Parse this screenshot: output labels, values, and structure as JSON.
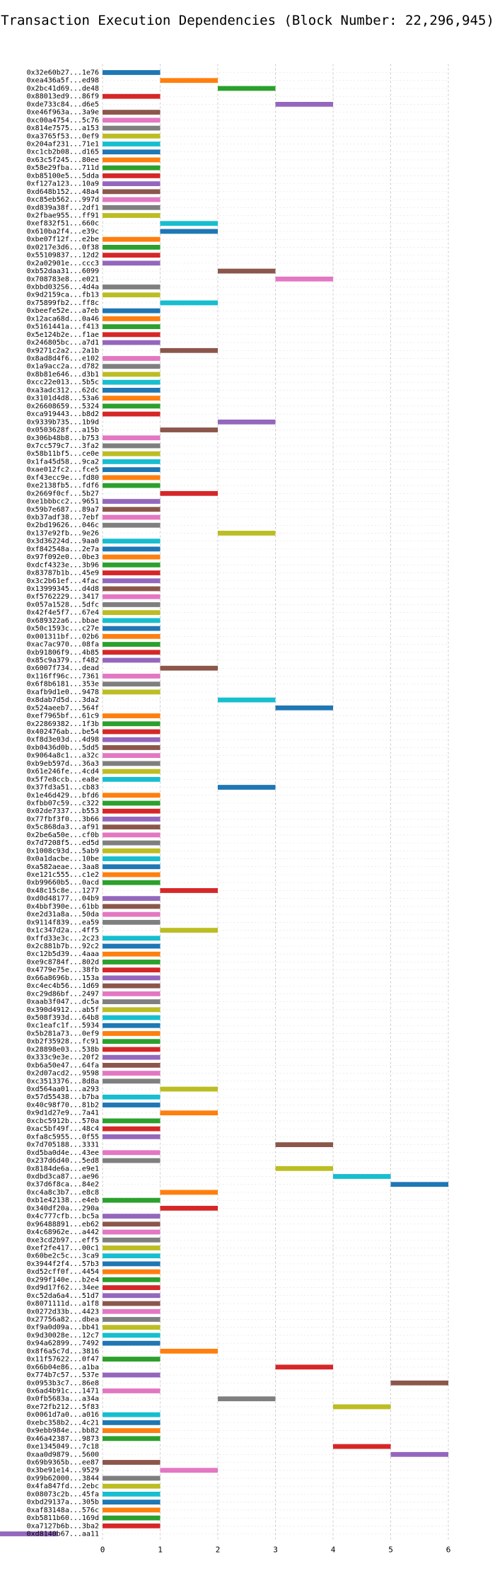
{
  "chart_data": {
    "type": "bar",
    "title": "Transaction Execution Dependencies (Block Number: 22,296,945)",
    "xlabel": "",
    "ylabel": "",
    "xlim": [
      0,
      6
    ],
    "xticks": [
      "0",
      "1",
      "2",
      "3",
      "4",
      "5",
      "6"
    ],
    "grid": true,
    "colors": [
      "#1f77b4",
      "#ff7f0e",
      "#2ca02c",
      "#d62728",
      "#9467bd",
      "#8c564b",
      "#e377c2",
      "#7f7f7f",
      "#bcbd22",
      "#17becf"
    ],
    "transactions": [
      "0x32e60b27...1e76",
      "0xea436a5f...ed98",
      "0x2bc41d69...de48",
      "0x88013ed9...86f9",
      "0xde733c84...d6e5",
      "0xe46f963a...3a9e",
      "0xc00a4754...5c76",
      "0x814e7575...a153",
      "0xa3765f53...0ef9",
      "0x204af231...71e1",
      "0xc1cb2b08...d165",
      "0x63c5f245...80ee",
      "0x58e29fba...711d",
      "0xb85100e5...5dda",
      "0xf127a123...10a9",
      "0xd648b152...48a4",
      "0xc85eb562...997d",
      "0xd839a38f...2df1",
      "0x2fbae955...ff91",
      "0xef832f51...660c",
      "0x610ba2f4...e39c",
      "0xbe07f12f...e2be",
      "0x0217e3d6...0f38",
      "0x55109837...12d2",
      "0x2a02901e...ccc3",
      "0xb52daa31...6099",
      "0x708783e8...e021",
      "0xbbd032S6...4d4a",
      "0x9d2159ca...fb13",
      "0x75899fb2...ff8c",
      "0xbeefe52e...a7eb",
      "0x12aca68d...0a46",
      "0x5161441a...f413",
      "0x5e124b2e...f1ae",
      "0x246805bc...a7d1",
      "0x9271c2a2...2a1b",
      "0x8ad8d4f6...e102",
      "0x1a9acc2a...d782",
      "0x8b81e646...d3b1",
      "0xcc22e013...5b5c",
      "0xa3adc312...62dc",
      "0x3101d4d8...53a6",
      "0x26608659...5324",
      "0xca919443...b8d2",
      "0x9339b735...1b9d",
      "0x0503628f...a15b",
      "0x306b48b8...b753",
      "0x7cc579c7...3fa2",
      "0x58b11bf5...ce0e",
      "0x1fa45d58...9ca2",
      "0xae012fc2...fce5",
      "0xf43ecc9e...fd80",
      "0xe2138fb5...fdf6",
      "0x2669f0cf...5b27",
      "0xe1bbbcc2...9651",
      "0x59b7e687...89a7",
      "0xb37adf38...7ebf",
      "0x2bd19626...046c",
      "0x137e92fb...9e26",
      "0x3d36224d...9aa0",
      "0xf842548a...2e7a",
      "0x97f092e0...0be3",
      "0xdcf4323e...3b96",
      "0x83787b1b...45e9",
      "0x3c2b61ef...4fac",
      "0x13999345...d4d8",
      "0xf5762229...3417",
      "0x057a1528...5dfc",
      "0x42f4e5f7...67e4",
      "0x689322a6...bbae",
      "0x50c1593c...c27e",
      "0x001311bf...02b6",
      "0xac7ac970...08fa",
      "0xb91806f9...4b85",
      "0x85c9a379...f482",
      "0x6007f734...dead",
      "0x116ff96c...7361",
      "0x6f8b6181...353e",
      "0xafb9d1e0...9478",
      "0x8dab7d5d...3da2",
      "0x524aeeb7...564f",
      "0xef7965bf...61c9",
      "0x22869382...1f3b",
      "0x402476ab...be54",
      "0xf8d3e03d...4d98",
      "0xb0436d0b...5dd5",
      "0x9064a8c1...a32c",
      "0xb9eb597d...36a3",
      "0x61e246fe...4cd4",
      "0x5f7e8ccb...ea8e",
      "0x37fd3a51...cb83",
      "0x1e46d429...bfd6",
      "0xfbb07c59...c322",
      "0x02de7337...b553",
      "0x77fbf3f0...3b66",
      "0x5c868da3...af91",
      "0x2be6a50e...cf0b",
      "0x7d7208f5...ed5d",
      "0x1008c93d...5ab9",
      "0x0a1dacbe...10be",
      "0xa582aeae...3aa8",
      "0xe121c555...c1e2",
      "0xb99660b5...0acd",
      "0x48c15c8e...1277",
      "0xd0d48177...04b9",
      "0x4bbf390e...61bb",
      "0xe2d31a8a...50da",
      "0x9114f839...ea59",
      "0x1c347d2a...4ff5",
      "0xffd33e3c...2c23",
      "0x2c881b7b...92c2",
      "0xc12b5d39...4aaa",
      "0xe9c8784f...802d",
      "0x4779e75e...38fb",
      "0x66a8696b...153a",
      "0xc4ec4b56...1d69",
      "0xc29d86bf...2497",
      "0xaab3f047...dc5a",
      "0x390d4912...ab5f",
      "0x508f393d...64b8",
      "0xc1eafc1f...5934",
      "0x5b281a73...0ef9",
      "0xb2f35928...fc91",
      "0x28898e03...538b",
      "0x333c9e3e...20f2",
      "0xb6a50e47...64fa",
      "0x2d07acd2...9598",
      "0xc3513376...8d8a",
      "0xd564aa01...a293",
      "0x57d55438...b7ba",
      "0x40c98f70...81b2",
      "0x9d1d27e9...7a41",
      "0xcbc5912b...570a",
      "0xac5bf49f...48c4",
      "0xfa8c5955...0f55",
      "0x7d705188...3331",
      "0xd5ba0d4e...43ee",
      "0x237d6d40...5ed8",
      "0x8184de6a...e9e1",
      "0xdbd3ca87...ae96",
      "0x37d6f8ca...84e2",
      "0xc4a8c3b7...e8c8",
      "0xb1e42138...e4eb",
      "0x340df20a...290a",
      "0x4c777cfb...bc5a",
      "0x96488891...eb62",
      "0x4c68962e...a442",
      "0xe3cd2b97...eff5",
      "0xef2fe417...00c1",
      "0x60be2c5c...3ca9",
      "0x3944f2f4...57b3",
      "0xd52cff0f...4454",
      "0x299f140e...b2e4",
      "0xd9d17f62...34ee",
      "0xc52da6a4...51d7",
      "0x8071111d...a1f8",
      "0x0272d33b...4423",
      "0x27756a82...dbea",
      "0xf9a0d09a...bb41",
      "0x9d30028e...12c7",
      "0x94a62899...7492",
      "0x8f6a5c7d...3816",
      "0x11f57622...0f47",
      "0x66b04e86...a1ba",
      "0x774b7c57...537e",
      "0x0953b3c7...86e8",
      "0x6ad4b91c...1471",
      "0x0fb5683a...a34a",
      "0xe72fb212...5f83",
      "0x0061d7a0...a016",
      "0xebc358b2...4c21",
      "0x9ebb984e...bb82",
      "0x46a42387...9873",
      "0xe1345049...7c18",
      "0xaa0d9879...5600",
      "0x69b9365b...ee87",
      "0x3be91e14...9529",
      "0x99b62000...3844",
      "0x4fa847fd...2ebc",
      "0x08073c2b...45fa",
      "0xbd29137a...305b",
      "0xaf83148a...576c",
      "0xb5811b60...169d",
      "0xa7127b6b...3ba2",
      "0xd8140b67...aa11"
    ],
    "starts": [
      0,
      1,
      2,
      0,
      3,
      0,
      0,
      0,
      0,
      0,
      0,
      0,
      0,
      0,
      0,
      0,
      0,
      0,
      0,
      1,
      1,
      0,
      0,
      0,
      0,
      2,
      3,
      0,
      0,
      1,
      0,
      0,
      0,
      0,
      0,
      1,
      0,
      0,
      0,
      0,
      0,
      0,
      0,
      0,
      2,
      1,
      0,
      0,
      0,
      0,
      0,
      0,
      0,
      1,
      0,
      0,
      0,
      0,
      2,
      0,
      0,
      0,
      0,
      0,
      0,
      0,
      0,
      0,
      0,
      0,
      0,
      0,
      0,
      0,
      0,
      1,
      0,
      0,
      0,
      2,
      3,
      0,
      0,
      0,
      0,
      0,
      0,
      0,
      0,
      0,
      2,
      0,
      0,
      0,
      0,
      0,
      0,
      0,
      0,
      0,
      0,
      0,
      0,
      1,
      0,
      0,
      0,
      0,
      1,
      0,
      0,
      0,
      0,
      0,
      0,
      0,
      0,
      0,
      0,
      0,
      0,
      0,
      0,
      0,
      0,
      0,
      0,
      0,
      1,
      0,
      0,
      1,
      0,
      0,
      0,
      3,
      0,
      0,
      3,
      4,
      5,
      1,
      0,
      1,
      0,
      0,
      0,
      0,
      0,
      0,
      0,
      0,
      0,
      0,
      0,
      0,
      0,
      0,
      0,
      0,
      0,
      1,
      0,
      3,
      0,
      5,
      0,
      2,
      4,
      0,
      0,
      0,
      0,
      4,
      5,
      0,
      1,
      0,
      0,
      0,
      0,
      0,
      0,
      0
    ]
  }
}
